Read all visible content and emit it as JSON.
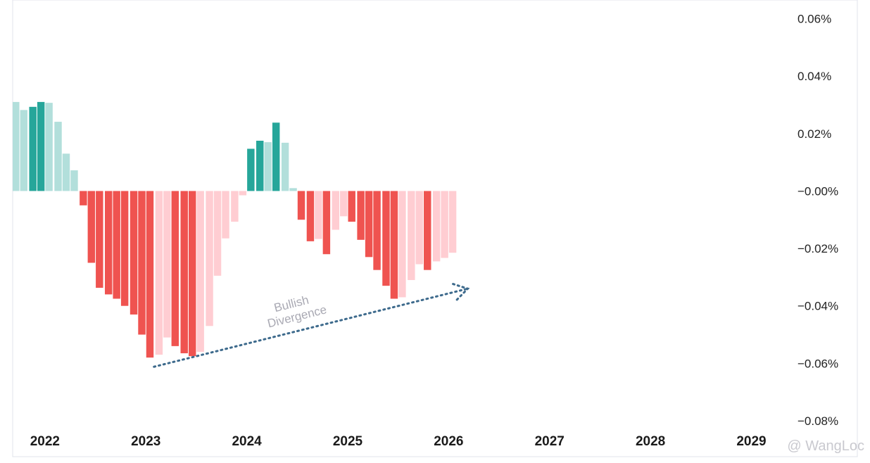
{
  "colors": {
    "strong_positive": "#26a69a",
    "weak_positive": "#b2dfdb",
    "strong_negative": "#ef5350",
    "weak_negative": "#ffcdd2",
    "arrow": "#3d6a8c",
    "axis_text": "#222222",
    "border": "#e0e3eb"
  },
  "watermark": "@ WangLoc",
  "chart_data": {
    "type": "bar",
    "title": "",
    "xlabel": "",
    "ylabel": "",
    "x_tick_labels": [
      "2022",
      "2023",
      "2024",
      "2025",
      "2026",
      "2027",
      "2028",
      "2029"
    ],
    "x_domain": [
      2021.68,
      2030.05
    ],
    "y_tick_labels": [
      "0.06%",
      "0.04%",
      "0.02%",
      "−0.00%",
      "−0.02%",
      "−0.04%",
      "−0.06%",
      "−0.08%"
    ],
    "y_tick_values": [
      0.06,
      0.04,
      0.02,
      0,
      -0.02,
      -0.04,
      -0.06,
      -0.08
    ],
    "ylim": [
      -0.0925,
      0.0665
    ],
    "grid": false,
    "bar_width_years": 0.0833,
    "series": [
      {
        "values": [
          {
            "x": 2021.71,
            "v": 0.031,
            "shade": "weak"
          },
          {
            "x": 2021.79,
            "v": 0.0282,
            "shade": "weak"
          },
          {
            "x": 2021.88,
            "v": 0.0293,
            "shade": "strong"
          },
          {
            "x": 2021.96,
            "v": 0.031,
            "shade": "strong"
          },
          {
            "x": 2022.04,
            "v": 0.0307,
            "shade": "weak"
          },
          {
            "x": 2022.13,
            "v": 0.0241,
            "shade": "weak"
          },
          {
            "x": 2022.21,
            "v": 0.013,
            "shade": "weak"
          },
          {
            "x": 2022.29,
            "v": 0.0072,
            "shade": "weak"
          },
          {
            "x": 2022.38,
            "v": -0.005,
            "shade": "strong"
          },
          {
            "x": 2022.46,
            "v": -0.025,
            "shade": "strong"
          },
          {
            "x": 2022.54,
            "v": -0.0337,
            "shade": "strong"
          },
          {
            "x": 2022.63,
            "v": -0.036,
            "shade": "strong"
          },
          {
            "x": 2022.71,
            "v": -0.0375,
            "shade": "strong"
          },
          {
            "x": 2022.79,
            "v": -0.04,
            "shade": "strong"
          },
          {
            "x": 2022.88,
            "v": -0.043,
            "shade": "strong"
          },
          {
            "x": 2022.96,
            "v": -0.05,
            "shade": "strong"
          },
          {
            "x": 2023.04,
            "v": -0.058,
            "shade": "strong"
          },
          {
            "x": 2023.13,
            "v": -0.057,
            "shade": "weak"
          },
          {
            "x": 2023.21,
            "v": -0.051,
            "shade": "weak"
          },
          {
            "x": 2023.29,
            "v": -0.054,
            "shade": "strong"
          },
          {
            "x": 2023.38,
            "v": -0.0565,
            "shade": "strong"
          },
          {
            "x": 2023.46,
            "v": -0.0575,
            "shade": "strong"
          },
          {
            "x": 2023.54,
            "v": -0.056,
            "shade": "weak"
          },
          {
            "x": 2023.63,
            "v": -0.047,
            "shade": "weak"
          },
          {
            "x": 2023.71,
            "v": -0.0295,
            "shade": "weak"
          },
          {
            "x": 2023.79,
            "v": -0.0165,
            "shade": "weak"
          },
          {
            "x": 2023.88,
            "v": -0.0107,
            "shade": "weak"
          },
          {
            "x": 2023.96,
            "v": -0.0015,
            "shade": "weak"
          },
          {
            "x": 2024.04,
            "v": 0.0147,
            "shade": "strong"
          },
          {
            "x": 2024.13,
            "v": 0.0175,
            "shade": "strong"
          },
          {
            "x": 2024.21,
            "v": 0.017,
            "shade": "weak"
          },
          {
            "x": 2024.29,
            "v": 0.0238,
            "shade": "strong"
          },
          {
            "x": 2024.38,
            "v": 0.0168,
            "shade": "weak"
          },
          {
            "x": 2024.46,
            "v": 0.001,
            "shade": "weak"
          },
          {
            "x": 2024.54,
            "v": -0.01,
            "shade": "strong"
          },
          {
            "x": 2024.63,
            "v": -0.0175,
            "shade": "strong"
          },
          {
            "x": 2024.71,
            "v": -0.0167,
            "shade": "weak"
          },
          {
            "x": 2024.79,
            "v": -0.022,
            "shade": "strong"
          },
          {
            "x": 2024.88,
            "v": -0.0135,
            "shade": "weak"
          },
          {
            "x": 2024.96,
            "v": -0.0088,
            "shade": "weak"
          },
          {
            "x": 2025.04,
            "v": -0.0107,
            "shade": "strong"
          },
          {
            "x": 2025.13,
            "v": -0.017,
            "shade": "strong"
          },
          {
            "x": 2025.21,
            "v": -0.023,
            "shade": "strong"
          },
          {
            "x": 2025.29,
            "v": -0.0275,
            "shade": "strong"
          },
          {
            "x": 2025.38,
            "v": -0.033,
            "shade": "strong"
          },
          {
            "x": 2025.46,
            "v": -0.0375,
            "shade": "strong"
          },
          {
            "x": 2025.54,
            "v": -0.037,
            "shade": "weak"
          },
          {
            "x": 2025.63,
            "v": -0.031,
            "shade": "weak"
          },
          {
            "x": 2025.71,
            "v": -0.0255,
            "shade": "weak"
          },
          {
            "x": 2025.79,
            "v": -0.0275,
            "shade": "strong"
          },
          {
            "x": 2025.88,
            "v": -0.0245,
            "shade": "weak"
          },
          {
            "x": 2025.96,
            "v": -0.0233,
            "shade": "weak"
          },
          {
            "x": 2026.04,
            "v": -0.0215,
            "shade": "weak"
          }
        ]
      }
    ],
    "annotation": {
      "lines": [
        "Bullish",
        "Divergence"
      ],
      "arrow_from": {
        "x": 2023.08,
        "v": -0.0612
      },
      "arrow_to": {
        "x": 2026.19,
        "v": -0.034
      }
    }
  }
}
